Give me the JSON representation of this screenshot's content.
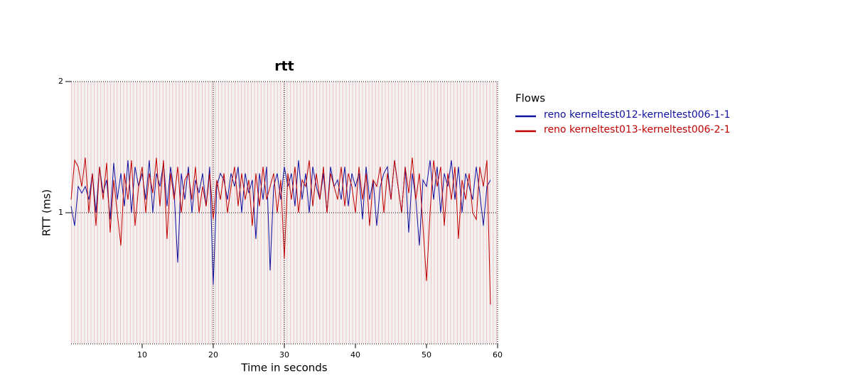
{
  "chart_data": {
    "type": "line",
    "title": "rtt",
    "xlabel": "Time in seconds",
    "ylabel": "RTT (ms)",
    "xlim": [
      0,
      60
    ],
    "ylim": [
      0,
      2
    ],
    "xticks": [
      10,
      20,
      30,
      40,
      50,
      60
    ],
    "yticks": [
      1,
      2
    ],
    "vlines": [
      20,
      30
    ],
    "grid": true,
    "legend_title": "Flows",
    "legend": "right",
    "x": [
      0,
      0.5,
      1,
      1.5,
      2,
      2.5,
      3,
      3.5,
      4,
      4.5,
      5,
      5.5,
      6,
      6.5,
      7,
      7.5,
      8,
      8.5,
      9,
      9.5,
      10,
      10.5,
      11,
      11.5,
      12,
      12.5,
      13,
      13.5,
      14,
      14.5,
      15,
      15.5,
      16,
      16.5,
      17,
      17.5,
      18,
      18.5,
      19,
      19.5,
      20,
      20.5,
      21,
      21.5,
      22,
      22.5,
      23,
      23.5,
      24,
      24.5,
      25,
      25.5,
      26,
      26.5,
      27,
      27.5,
      28,
      28.5,
      29,
      29.5,
      30,
      30.5,
      31,
      31.5,
      32,
      32.5,
      33,
      33.5,
      34,
      34.5,
      35,
      35.5,
      36,
      36.5,
      37,
      37.5,
      38,
      38.5,
      39,
      39.5,
      40,
      40.5,
      41,
      41.5,
      42,
      42.5,
      43,
      43.5,
      44,
      44.5,
      45,
      45.5,
      46,
      46.5,
      47,
      47.5,
      48,
      48.5,
      49,
      49.5,
      50,
      50.5,
      51,
      51.5,
      52,
      52.5,
      53,
      53.5,
      54,
      54.5,
      55,
      55.5,
      56,
      56.5,
      57,
      57.5,
      58,
      58.5,
      59
    ],
    "series": [
      {
        "name": "reno kerneltest012-kerneltest006-1-1",
        "color": "#1010a0",
        "values": [
          1.05,
          0.9,
          1.2,
          1.15,
          1.2,
          1.1,
          1.3,
          1.0,
          1.35,
          1.15,
          1.25,
          0.95,
          1.38,
          1.1,
          1.3,
          1.05,
          1.4,
          1.0,
          1.35,
          1.2,
          1.3,
          1.1,
          1.4,
          1.0,
          1.3,
          1.2,
          1.38,
          1.05,
          1.35,
          1.15,
          0.62,
          1.3,
          1.1,
          1.35,
          1.0,
          1.25,
          1.15,
          1.3,
          1.05,
          1.35,
          0.45,
          1.2,
          1.3,
          1.25,
          1.1,
          1.3,
          1.2,
          1.35,
          1.0,
          1.3,
          1.15,
          1.25,
          0.8,
          1.3,
          1.1,
          1.35,
          0.56,
          1.2,
          1.3,
          1.1,
          1.35,
          1.2,
          1.3,
          1.05,
          1.4,
          1.1,
          1.3,
          1.0,
          1.35,
          1.2,
          1.1,
          1.3,
          1.0,
          1.35,
          1.2,
          1.25,
          1.1,
          1.35,
          1.05,
          1.3,
          1.2,
          1.3,
          0.95,
          1.35,
          1.1,
          1.25,
          0.9,
          1.2,
          1.3,
          1.35,
          1.1,
          1.4,
          1.2,
          1.0,
          1.35,
          0.85,
          1.3,
          1.1,
          0.75,
          1.25,
          1.2,
          1.4,
          1.1,
          1.35,
          1.0,
          1.3,
          1.2,
          1.4,
          1.1,
          1.35,
          1.0,
          1.3,
          1.2,
          1.1,
          1.35,
          1.15,
          0.9,
          1.2,
          1.25
        ]
      },
      {
        "name": "reno kerneltest013-kerneltest006-2-1",
        "color": "#c00000",
        "values": [
          1.1,
          1.4,
          1.35,
          1.2,
          1.42,
          1.0,
          1.3,
          0.9,
          1.35,
          1.1,
          1.38,
          0.85,
          1.25,
          1.0,
          0.75,
          1.3,
          1.1,
          1.4,
          0.9,
          1.2,
          1.35,
          1.0,
          1.3,
          1.15,
          1.42,
          1.05,
          1.4,
          0.8,
          1.3,
          1.1,
          1.35,
          1.0,
          1.25,
          1.3,
          1.1,
          1.35,
          1.0,
          1.2,
          1.05,
          1.3,
          0.95,
          1.25,
          1.1,
          1.3,
          1.0,
          1.2,
          1.35,
          1.05,
          1.3,
          1.1,
          1.25,
          0.9,
          1.3,
          1.05,
          1.35,
          1.1,
          1.2,
          1.3,
          1.0,
          1.25,
          0.65,
          1.3,
          1.1,
          1.35,
          1.0,
          1.25,
          1.2,
          1.4,
          1.05,
          1.3,
          1.1,
          1.35,
          1.0,
          1.3,
          1.2,
          1.1,
          1.35,
          1.05,
          1.3,
          1.2,
          1.0,
          1.35,
          1.1,
          1.3,
          0.9,
          1.25,
          1.2,
          1.35,
          1.0,
          1.3,
          1.1,
          1.4,
          1.2,
          1.0,
          1.35,
          1.15,
          1.42,
          1.1,
          1.3,
          0.9,
          0.48,
          1.0,
          1.4,
          1.2,
          1.35,
          0.9,
          1.3,
          1.1,
          1.35,
          0.8,
          1.25,
          1.1,
          1.3,
          1.0,
          0.95,
          1.35,
          1.2,
          1.4,
          0.3
        ]
      }
    ]
  }
}
